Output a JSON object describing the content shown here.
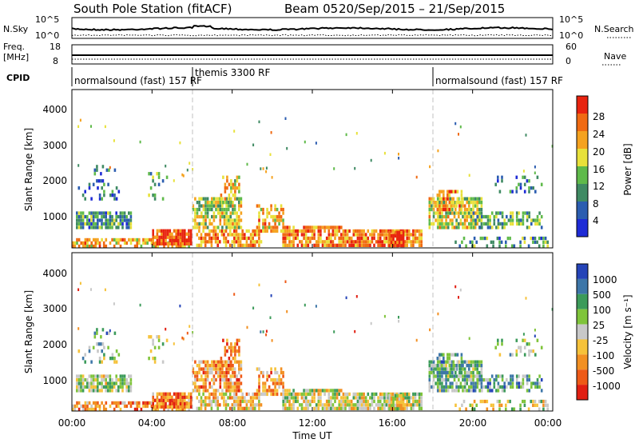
{
  "header": {
    "station": "South Pole Station (fitACF)",
    "beam": "Beam 05",
    "dates": "20/Sep/2015 – 21/Sep/2015"
  },
  "strips": {
    "nsky": {
      "label": "N.Sky",
      "tick_top": "10^5",
      "tick_bottom": "10^0",
      "right_label": "N.Search",
      "right_tick_top": "10^5",
      "right_tick_bottom": "10^0"
    },
    "freq": {
      "label_line1": "Freq.",
      "label_line2": "[MHz]",
      "tick_top": "18",
      "tick_bottom": "8",
      "right_label": "Nave",
      "right_tick_top": "60",
      "right_tick_bottom": "0"
    },
    "cpid": {
      "label": "CPID",
      "segments": [
        {
          "text": "normalsound (fast) 157 RF",
          "start_hour": 0,
          "end_hour": 6
        },
        {
          "text": "themis 3300 RF",
          "start_hour": 6,
          "end_hour": 18
        },
        {
          "text": "normalsound (fast) 157 RF",
          "start_hour": 18,
          "end_hour": 24
        }
      ]
    }
  },
  "chart_data": [
    {
      "type": "heatmap",
      "name": "power",
      "ylabel": "Slant Range [km]",
      "ylim": [
        180,
        4600
      ],
      "yticks": [
        "1000",
        "2000",
        "3000",
        "4000"
      ],
      "xlim": [
        0,
        24
      ],
      "colorbar_label": "Power [dB]",
      "colorbar_ticks": [
        "4",
        "8",
        "12",
        "16",
        "20",
        "24",
        "28"
      ],
      "colorbar_range": [
        0,
        30
      ],
      "colors": [
        "#1e2bd6",
        "#2b5db0",
        "#3f8a63",
        "#5fba4a",
        "#e8e13a",
        "#f5a21f",
        "#f06a12",
        "#e8230f"
      ]
    },
    {
      "type": "heatmap",
      "name": "velocity",
      "ylabel": "Slant Range [km]",
      "ylim": [
        180,
        4600
      ],
      "yticks": [
        "1000",
        "2000",
        "3000",
        "4000"
      ],
      "xlim": [
        0,
        24
      ],
      "colorbar_label": "Velocity [m s⁻¹]",
      "colorbar_ticks": [
        "1000",
        "500",
        "100",
        "25",
        "-25",
        "-100",
        "-500",
        "-1000"
      ],
      "colors": [
        "#2544b8",
        "#3d76a8",
        "#3c9b5a",
        "#7fc43a",
        "#c8c8c8",
        "#f6c23a",
        "#f29022",
        "#ee5a17",
        "#e11f12"
      ]
    }
  ],
  "xaxis": {
    "ticks": [
      "00:00",
      "04:00",
      "08:00",
      "12:00",
      "16:00",
      "20:00",
      "00:00"
    ],
    "label": "Time UT"
  },
  "markers": {
    "dashed_hours": [
      6,
      18
    ]
  }
}
